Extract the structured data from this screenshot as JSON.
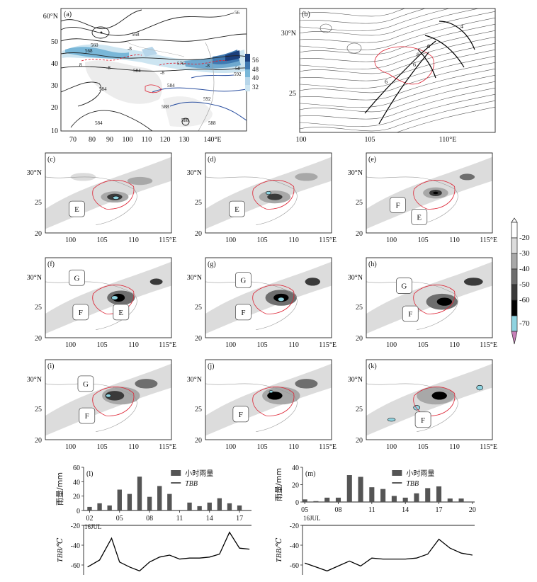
{
  "panel_a": {
    "label": "(a)",
    "lat_ticks": [
      "60°N",
      "50",
      "40",
      "30",
      "20",
      "10"
    ],
    "lon_ticks": [
      "70",
      "80",
      "90",
      "100",
      "110",
      "120",
      "130",
      "140°E"
    ],
    "contour_labels": [
      "560",
      "568",
      "568",
      "576",
      "584",
      "584",
      "584",
      "584",
      "588",
      "588",
      "588",
      "592",
      "592",
      "58",
      "56",
      "-8",
      "-8",
      "-8",
      "8",
      "-8"
    ],
    "colorbar_ticks": [
      "56",
      "48",
      "40",
      "32"
    ]
  },
  "panel_b": {
    "label": "(b)",
    "lat_ticks": [
      "30°N",
      "25"
    ],
    "lon_ticks": [
      "100",
      "105",
      "110°E"
    ],
    "contour_labels": [
      "4",
      "6",
      "8",
      "6",
      "6"
    ]
  },
  "tbb_maps": {
    "lat_ticks": [
      "30°N",
      "25",
      "20"
    ],
    "lon_ticks": [
      "100",
      "105",
      "110",
      "115°E"
    ],
    "panels": [
      {
        "label": "(c)",
        "systems": [
          "E"
        ]
      },
      {
        "label": "(d)",
        "systems": [
          "E"
        ]
      },
      {
        "label": "(e)",
        "systems": [
          "F",
          "E"
        ]
      },
      {
        "label": "(f)",
        "systems": [
          "G",
          "F",
          "E"
        ]
      },
      {
        "label": "(g)",
        "systems": [
          "G",
          "F"
        ]
      },
      {
        "label": "(h)",
        "systems": [
          "G",
          "F"
        ]
      },
      {
        "label": "(i)",
        "systems": [
          "G",
          "F"
        ]
      },
      {
        "label": "(j)",
        "systems": [
          "F"
        ]
      },
      {
        "label": "(k)",
        "systems": [
          "F"
        ]
      }
    ],
    "colorbar_ticks": [
      "-20",
      "-30",
      "-40",
      "-50",
      "-60",
      "-70"
    ],
    "colors": [
      "#ffffff",
      "#dcdcdc",
      "#a8a8a8",
      "#6e6e6e",
      "#3a3a3a",
      "#000000",
      "#8fd3e0",
      "#c77fb8"
    ]
  },
  "chart_data": [
    {
      "type": "bar",
      "panel": "(l)",
      "ylabel": "雨量/mm",
      "legend": [
        "小时雨量",
        "TBB"
      ],
      "x_ticks": [
        "02",
        "05",
        "08",
        "11",
        "14",
        "17"
      ],
      "x_date": "16JUL",
      "y_ticks": [
        "60",
        "40",
        "20",
        "0"
      ],
      "ylim": [
        0,
        60
      ],
      "x": [
        2,
        3,
        4,
        5,
        6,
        7,
        8,
        9,
        10,
        11,
        12,
        13,
        14,
        15,
        16,
        17
      ],
      "values": [
        5,
        10,
        7,
        29,
        23,
        47,
        19,
        34,
        23,
        0,
        11,
        6,
        11,
        17,
        10,
        7
      ],
      "tbb_ylabel": "TBB/℃",
      "tbb_y_ticks": [
        "-20",
        "-40",
        "-60"
      ],
      "tbb_ylim": [
        -70,
        -20
      ],
      "tbb_x": [
        1.8,
        3,
        4.2,
        5,
        6,
        7,
        8,
        9,
        10,
        11,
        12,
        13,
        14,
        15,
        16,
        17,
        18
      ],
      "tbb": [
        -62,
        -55,
        -33,
        -57,
        -62,
        -66,
        -57,
        -52,
        -50,
        -54,
        -53,
        -53,
        -52,
        -49,
        -27,
        -43,
        -44
      ]
    },
    {
      "type": "bar",
      "panel": "(m)",
      "ylabel": "雨量/mm",
      "legend": [
        "小时雨量",
        "TBB"
      ],
      "x_ticks": [
        "05",
        "08",
        "11",
        "14",
        "17",
        "20"
      ],
      "x_date": "16JUL",
      "y_ticks": [
        "40",
        "20",
        "0"
      ],
      "ylim": [
        0,
        40
      ],
      "x": [
        5,
        6,
        7,
        8,
        9,
        10,
        11,
        12,
        13,
        14,
        15,
        16,
        17,
        18,
        19
      ],
      "values": [
        3,
        1,
        5,
        5,
        31,
        29,
        17,
        15,
        7,
        5,
        10,
        16,
        18,
        4,
        4
      ],
      "tbb_ylabel": "TBB/℃",
      "tbb_y_ticks": [
        "-20",
        "-40",
        "-60"
      ],
      "tbb_ylim": [
        -70,
        -20
      ],
      "tbb_x": [
        5,
        6,
        7,
        8,
        9,
        10,
        11,
        12,
        13,
        14,
        15,
        16,
        17,
        18,
        19,
        20
      ],
      "tbb": [
        -58,
        -62,
        -66,
        -61,
        -56,
        -61,
        -53,
        -54,
        -54,
        -54,
        -53,
        -49,
        -34,
        -43,
        -48,
        -50
      ]
    }
  ]
}
